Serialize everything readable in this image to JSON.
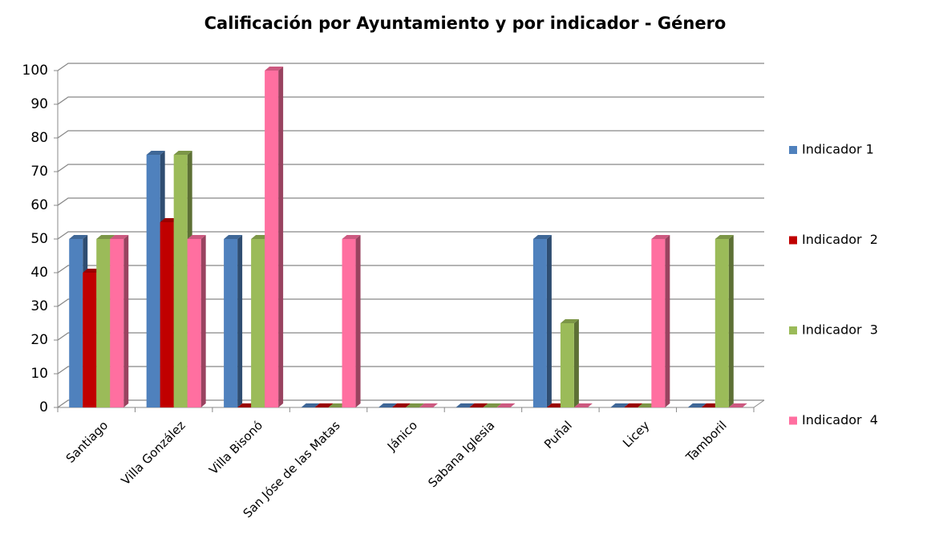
{
  "chart_data": {
    "type": "bar3d",
    "title": "Calificación por Ayuntamiento y por indicador - Género",
    "categories": [
      "Santiago",
      "Villa González",
      "Villa Bisonó",
      "San Jóse de las Matas",
      "Jánico",
      "Sabana Iglesia",
      "Puñal",
      "Licey",
      "Tamboril"
    ],
    "series": [
      {
        "name": "Indicador 1",
        "color": "#4f81bd",
        "values": [
          50,
          75,
          50,
          0,
          0,
          0,
          50,
          0,
          0
        ]
      },
      {
        "name": "Indicador  2",
        "color": "#c00000",
        "values": [
          40,
          55,
          0,
          0,
          0,
          0,
          0,
          0,
          0
        ]
      },
      {
        "name": "Indicador  3",
        "color": "#9bbb59",
        "values": [
          50,
          75,
          50,
          0,
          0,
          0,
          25,
          0,
          50
        ]
      },
      {
        "name": "Indicador  4",
        "color": "#ff6fa0",
        "values": [
          50,
          50,
          100,
          50,
          0,
          0,
          0,
          50,
          0
        ]
      }
    ],
    "ylim": [
      0,
      100
    ],
    "yticks": [
      0,
      10,
      20,
      30,
      40,
      50,
      60,
      70,
      80,
      90,
      100
    ],
    "grid": true,
    "legend": "right"
  }
}
